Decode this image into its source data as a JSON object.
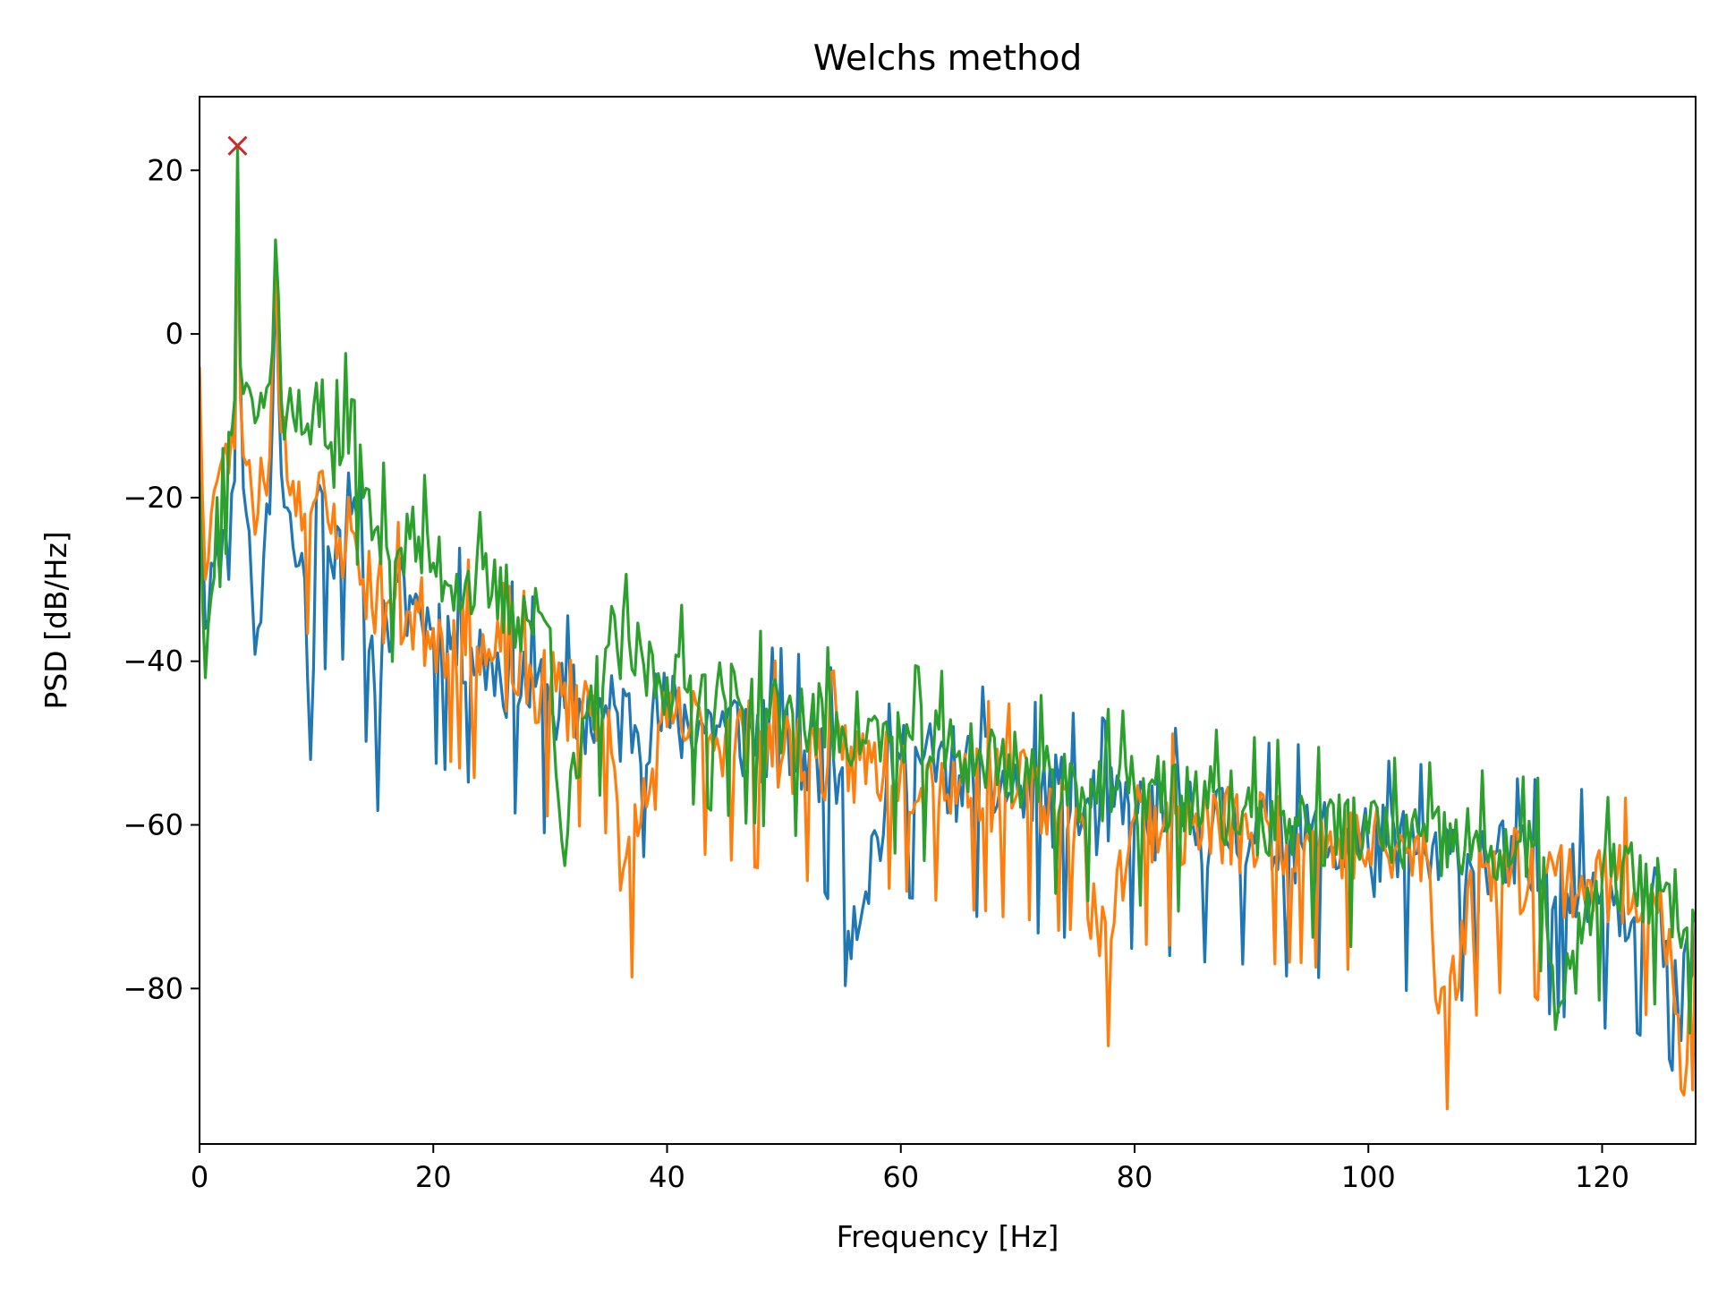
{
  "chart_data": {
    "type": "line",
    "title": "Welchs method",
    "xlabel": "Frequency [Hz]",
    "ylabel": "PSD [dB/Hz]",
    "xlim": [
      0,
      128
    ],
    "ylim": [
      -99,
      29
    ],
    "xticks": [
      0,
      20,
      40,
      60,
      80,
      100,
      120
    ],
    "yticks": [
      20,
      0,
      -20,
      -40,
      -60,
      -80
    ],
    "grid": false,
    "legend": "none",
    "x_step_hz": 0.25,
    "series": [
      {
        "color": "#1f77b4",
        "anchors": [
          [
            0,
            -5
          ],
          [
            0.5,
            -36
          ],
          [
            1,
            -28
          ],
          [
            1.5,
            -25
          ],
          [
            2,
            -24
          ],
          [
            2.5,
            -30
          ],
          [
            3,
            -18
          ],
          [
            3.25,
            18
          ],
          [
            3.5,
            -5
          ],
          [
            4,
            -22
          ],
          [
            4.5,
            -32
          ],
          [
            5,
            -36
          ],
          [
            5.5,
            -27
          ],
          [
            6,
            -22
          ],
          [
            6.5,
            8
          ],
          [
            7,
            -17
          ],
          [
            8,
            -26
          ],
          [
            9,
            -30
          ],
          [
            9.5,
            -52
          ],
          [
            10,
            -20
          ],
          [
            11,
            -26
          ],
          [
            12,
            -24
          ],
          [
            13,
            -22
          ],
          [
            14,
            -30
          ],
          [
            15,
            -44
          ],
          [
            16,
            -35
          ],
          [
            18,
            -32
          ],
          [
            20,
            -36
          ],
          [
            25,
            -40
          ],
          [
            30,
            -45
          ],
          [
            35,
            -47
          ],
          [
            40,
            -47
          ],
          [
            45,
            -48
          ],
          [
            50,
            -50
          ],
          [
            55,
            -53
          ],
          [
            55.5,
            -73
          ],
          [
            60,
            -52
          ],
          [
            65,
            -54
          ],
          [
            70,
            -56
          ],
          [
            75,
            -58
          ],
          [
            80,
            -59
          ],
          [
            85,
            -60
          ],
          [
            90,
            -61
          ],
          [
            95,
            -62
          ],
          [
            100,
            -63
          ],
          [
            105,
            -64
          ],
          [
            110,
            -65
          ],
          [
            115,
            -66
          ],
          [
            120,
            -68
          ],
          [
            125,
            -70
          ],
          [
            126,
            -90
          ],
          [
            128,
            -72
          ]
        ],
        "noise": 6.5,
        "seed": 11
      },
      {
        "color": "#ff7f0e",
        "anchors": [
          [
            0,
            -4
          ],
          [
            0.5,
            -30
          ],
          [
            1,
            -22
          ],
          [
            1.5,
            -18
          ],
          [
            2,
            -15
          ],
          [
            2.5,
            -17
          ],
          [
            3,
            -14
          ],
          [
            3.25,
            20
          ],
          [
            3.5,
            -8
          ],
          [
            4,
            -16
          ],
          [
            4.5,
            -20
          ],
          [
            5,
            -22
          ],
          [
            5.5,
            -18
          ],
          [
            6,
            -15
          ],
          [
            6.5,
            10
          ],
          [
            7,
            -12
          ],
          [
            8,
            -18
          ],
          [
            9,
            -22
          ],
          [
            10,
            -20
          ],
          [
            11,
            -23
          ],
          [
            12,
            -25
          ],
          [
            13,
            -24
          ],
          [
            14,
            -30
          ],
          [
            16,
            -33
          ],
          [
            18,
            -34
          ],
          [
            20,
            -36
          ],
          [
            25,
            -40
          ],
          [
            30,
            -44
          ],
          [
            35,
            -46
          ],
          [
            36,
            -68
          ],
          [
            40,
            -48
          ],
          [
            45,
            -49
          ],
          [
            50,
            -51
          ],
          [
            55,
            -52
          ],
          [
            60,
            -53
          ],
          [
            65,
            -55
          ],
          [
            70,
            -56
          ],
          [
            75,
            -58
          ],
          [
            77,
            -76
          ],
          [
            80,
            -59
          ],
          [
            85,
            -60
          ],
          [
            90,
            -61
          ],
          [
            95,
            -62
          ],
          [
            100,
            -63
          ],
          [
            105,
            -64
          ],
          [
            106,
            -83
          ],
          [
            110,
            -65
          ],
          [
            115,
            -66
          ],
          [
            120,
            -67
          ],
          [
            125,
            -68
          ],
          [
            127,
            -93
          ],
          [
            128,
            -72
          ]
        ],
        "noise": 6.0,
        "seed": 23
      },
      {
        "color": "#2ca02c",
        "anchors": [
          [
            0,
            -18
          ],
          [
            0.5,
            -42
          ],
          [
            1,
            -32
          ],
          [
            1.5,
            -20
          ],
          [
            2,
            -14
          ],
          [
            2.5,
            -12
          ],
          [
            3,
            -8
          ],
          [
            3.25,
            23
          ],
          [
            3.5,
            -4
          ],
          [
            4,
            -6
          ],
          [
            4.5,
            -8
          ],
          [
            5,
            -10
          ],
          [
            5.5,
            -9
          ],
          [
            6,
            -6
          ],
          [
            6.5,
            11.5
          ],
          [
            7,
            -8
          ],
          [
            8,
            -10
          ],
          [
            9,
            -12
          ],
          [
            10,
            -6
          ],
          [
            11,
            -14
          ],
          [
            12,
            -16
          ],
          [
            13,
            -8
          ],
          [
            14,
            -20
          ],
          [
            15,
            -24
          ],
          [
            16,
            -26
          ],
          [
            18,
            -25
          ],
          [
            20,
            -28
          ],
          [
            25,
            -32
          ],
          [
            30,
            -36
          ],
          [
            31,
            -62
          ],
          [
            35,
            -38
          ],
          [
            40,
            -42
          ],
          [
            45,
            -45
          ],
          [
            50,
            -47
          ],
          [
            55,
            -48
          ],
          [
            60,
            -50
          ],
          [
            65,
            -51
          ],
          [
            70,
            -53
          ],
          [
            75,
            -55
          ],
          [
            80,
            -56
          ],
          [
            85,
            -57
          ],
          [
            90,
            -59
          ],
          [
            95,
            -60
          ],
          [
            100,
            -61
          ],
          [
            105,
            -62
          ],
          [
            110,
            -63
          ],
          [
            115,
            -64
          ],
          [
            116,
            -85
          ],
          [
            120,
            -66
          ],
          [
            125,
            -68
          ],
          [
            128,
            -72
          ]
        ],
        "noise": 5.5,
        "seed": 37
      }
    ],
    "peak_marker": {
      "x": 3.25,
      "y": 23,
      "symbol": "×",
      "color": "#d62728"
    }
  }
}
